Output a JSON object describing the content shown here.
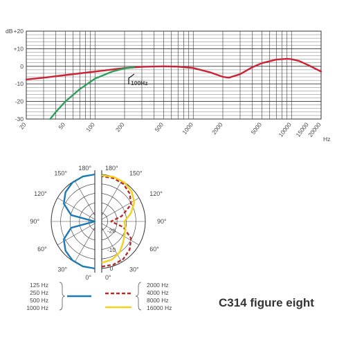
{
  "chart_data": [
    {
      "type": "line",
      "y_unit_label": "dB",
      "x_unit_label": "Hz",
      "x_scale": "log",
      "xlim": [
        20,
        20000
      ],
      "ylim": [
        -30,
        20
      ],
      "y_ticks": [
        "+20",
        "+10",
        "0",
        "-10",
        "-20",
        "-30"
      ],
      "x_ticks": [
        "20",
        "50",
        "100",
        "200",
        "500",
        "1000",
        "2000",
        "5000",
        "10000",
        "15000",
        "20000"
      ],
      "grid": true,
      "annotation": "100Hz",
      "series": [
        {
          "color": "#cc2233",
          "points": [
            [
              20,
              -7.5
            ],
            [
              30,
              -6.5
            ],
            [
              50,
              -5
            ],
            [
              100,
              -3
            ],
            [
              200,
              -1
            ],
            [
              300,
              -0.3
            ],
            [
              500,
              0
            ],
            [
              700,
              -0.2
            ],
            [
              1000,
              -1
            ],
            [
              1500,
              -3.5
            ],
            [
              2000,
              -6
            ],
            [
              2300,
              -6.5
            ],
            [
              3000,
              -4.5
            ],
            [
              4000,
              -0.5
            ],
            [
              5000,
              1.8
            ],
            [
              7000,
              3.8
            ],
            [
              9000,
              4.3
            ],
            [
              10000,
              4
            ],
            [
              12000,
              3
            ],
            [
              15000,
              0.5
            ],
            [
              20000,
              -3
            ]
          ]
        },
        {
          "color": "#2e9e5b",
          "points": [
            [
              35,
              -30
            ],
            [
              40,
              -26
            ],
            [
              50,
              -20
            ],
            [
              70,
              -13
            ],
            [
              100,
              -7
            ],
            [
              150,
              -3
            ],
            [
              200,
              -1.2
            ],
            [
              250,
              -0.6
            ]
          ]
        }
      ]
    },
    {
      "type": "polar",
      "scale": "dB",
      "radial_ticks": [
        "0",
        "-10",
        "-20"
      ],
      "angle_labels": [
        "180°",
        "150°",
        "120°",
        "90°",
        "60°",
        "30°",
        "0°"
      ],
      "series": [
        {
          "side": "left",
          "color": "#1a7ab5",
          "style": "solid",
          "points_deg_db": [
            [
              0,
              0
            ],
            [
              15,
              -0.3
            ],
            [
              30,
              -1.2
            ],
            [
              45,
              -3
            ],
            [
              60,
              -6
            ],
            [
              75,
              -12
            ],
            [
              90,
              -25
            ],
            [
              105,
              -12
            ],
            [
              120,
              -6
            ],
            [
              135,
              -3
            ],
            [
              150,
              -1.2
            ],
            [
              165,
              -0.3
            ],
            [
              180,
              0
            ]
          ]
        },
        {
          "side": "right",
          "color": "#b52a2a",
          "style": "dashed",
          "points_deg_db": [
            [
              0,
              -1
            ],
            [
              15,
              -1.2
            ],
            [
              30,
              -2
            ],
            [
              45,
              -4
            ],
            [
              60,
              -7
            ],
            [
              75,
              -13
            ],
            [
              90,
              -20
            ],
            [
              105,
              -14
            ],
            [
              120,
              -7
            ],
            [
              135,
              -4
            ],
            [
              150,
              -2
            ],
            [
              165,
              -1.2
            ],
            [
              180,
              -1
            ]
          ]
        },
        {
          "side": "right",
          "color": "#f2d21f",
          "style": "solid",
          "points_deg_db": [
            [
              0,
              -3
            ],
            [
              15,
              -4
            ],
            [
              30,
              -6
            ],
            [
              45,
              -9
            ],
            [
              60,
              -11
            ],
            [
              75,
              -12
            ],
            [
              90,
              -13
            ],
            [
              105,
              -9
            ],
            [
              120,
              -5
            ],
            [
              135,
              -2.5
            ],
            [
              150,
              -1
            ],
            [
              165,
              -0.5
            ],
            [
              180,
              -0.5
            ]
          ]
        }
      ]
    }
  ],
  "legend": {
    "left_labels": [
      "125 Hz",
      "250 Hz",
      "500 Hz",
      "1000 Hz"
    ],
    "right_labels": [
      "2000 Hz",
      "4000 Hz",
      "8000 Hz",
      "16000 Hz"
    ]
  },
  "caption": "C314 figure eight"
}
